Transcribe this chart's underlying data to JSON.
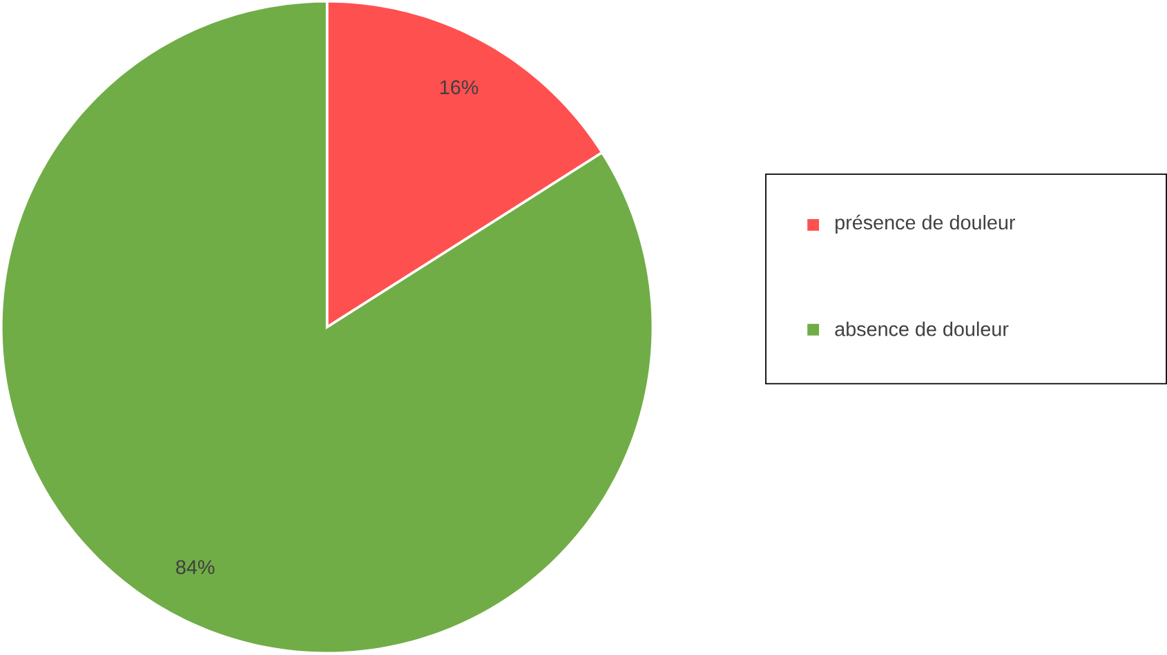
{
  "chart_data": {
    "type": "pie",
    "categories": [
      "présence de douleur",
      "absence de douleur"
    ],
    "values": [
      16,
      84
    ],
    "colors": [
      "#ff5050",
      "#70ad47"
    ],
    "value_labels": [
      "16%",
      "84%"
    ],
    "legend": "right"
  }
}
